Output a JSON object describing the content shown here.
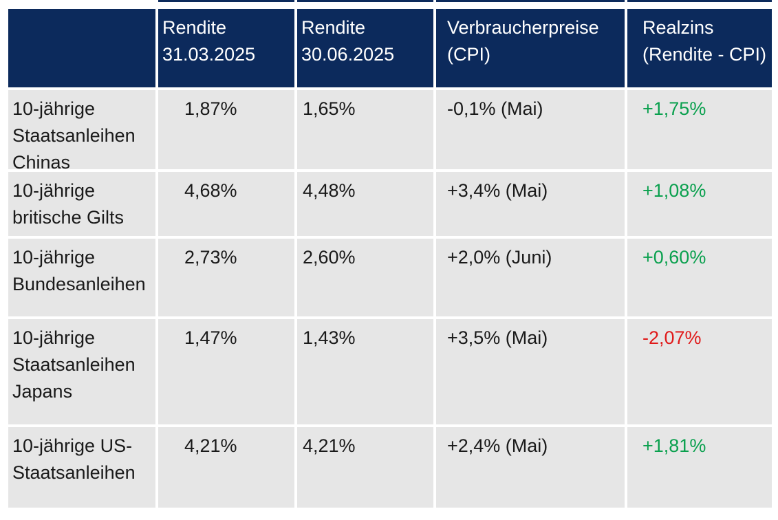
{
  "colors": {
    "header_bg": "#0c2a5c",
    "row_bg": "#e6e6e6",
    "header_text": "#ffffff",
    "body_text": "#1a1a1a",
    "positive": "#0aa04e",
    "negative": "#e01a1a",
    "page_bg": "#ffffff"
  },
  "chart_data": {
    "type": "table",
    "columns": [
      "",
      "Rendite 31.03.2025",
      "Rendite 30.06.2025",
      "Verbraucherpreise (CPI)",
      "Realzins (Rendite - CPI)"
    ],
    "rows": [
      {
        "cells": [
          "10-jährige Staatsanleihen Chinas",
          "1,87%",
          "1,65%",
          "-0,1% (Mai)",
          "+1,75%"
        ],
        "realzins_trend": "positive",
        "realzins_color": "#0aa04e"
      },
      {
        "cells": [
          "10-jährige britische Gilts",
          "4,68%",
          "4,48%",
          "+3,4% (Mai)",
          "+1,08%"
        ],
        "realzins_trend": "positive",
        "realzins_color": "#0aa04e"
      },
      {
        "cells": [
          "10-jährige Bundesanleihen",
          "2,73%",
          "2,60%",
          "+2,0% (Juni)",
          "+0,60%"
        ],
        "realzins_trend": "positive",
        "realzins_color": "#0aa04e"
      },
      {
        "cells": [
          "10-jährige Staatsanleihen Japans",
          "1,47%",
          "1,43%",
          "+3,5% (Mai)",
          "-2,07%"
        ],
        "realzins_trend": "negative",
        "realzins_color": "#e01a1a"
      },
      {
        "cells": [
          "10-jährige US-Staatsanleihen",
          "4,21%",
          "4,21%",
          "+2,4% (Mai)",
          "+1,81%"
        ],
        "realzins_trend": "positive",
        "realzins_color": "#0aa04e"
      }
    ]
  }
}
